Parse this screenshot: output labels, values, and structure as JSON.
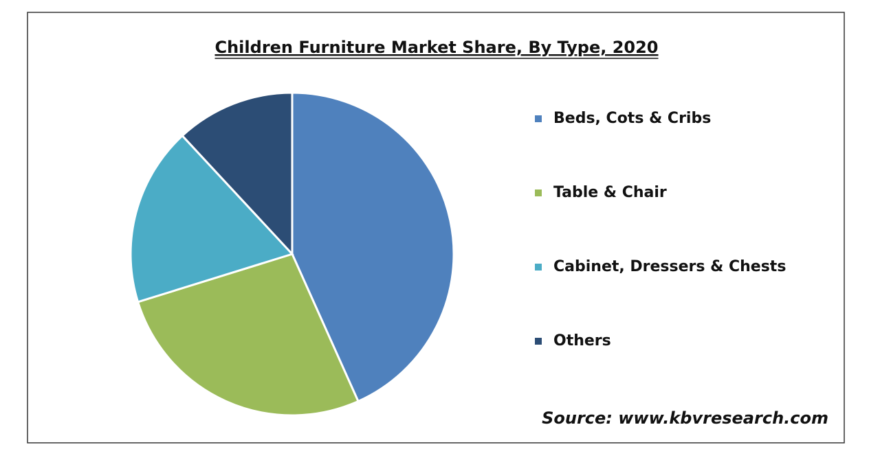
{
  "chart_data": {
    "type": "pie",
    "title": "Children Furniture Market Share, By Type, 2020",
    "categories": [
      "Beds, Cots & Cribs",
      "Table & Chair",
      "Cabinet, Dressers & Chests",
      "Others"
    ],
    "values": [
      43.3,
      26.9,
      17.9,
      11.9
    ],
    "colors": [
      "#4f81bd",
      "#9bbb59",
      "#4bacc6",
      "#2c4d75"
    ],
    "source": "Source: www.kbvresearch.com"
  }
}
